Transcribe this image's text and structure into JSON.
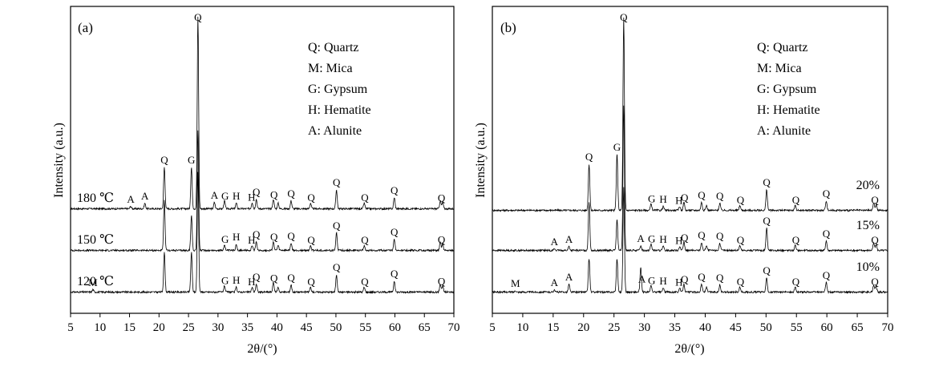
{
  "chart_data": [
    {
      "type": "line",
      "panel_label": "(a)",
      "xlabel": "2θ/(°)",
      "ylabel": "Intensity (a.u.)",
      "xlim": [
        5,
        70
      ],
      "xticks": [
        5,
        10,
        15,
        20,
        25,
        30,
        35,
        40,
        45,
        50,
        55,
        60,
        65,
        70
      ],
      "legend": [
        "Q:  Quartz",
        "M: Mica",
        "G: Gypsum",
        "H: Hematite",
        "A: Alunite"
      ],
      "legend_position": "top-right",
      "series": [
        {
          "name": "180 ℃",
          "baseline": 10,
          "peaks": [
            [
              15.2,
              3
            ],
            [
              17.6,
              7
            ],
            [
              20.9,
              52
            ],
            [
              25.5,
              52
            ],
            [
              26.6,
              240
            ],
            [
              29.4,
              8
            ],
            [
              31.1,
              10
            ],
            [
              33.1,
              7
            ],
            [
              35.8,
              8
            ],
            [
              36.5,
              12
            ],
            [
              39.4,
              12
            ],
            [
              40.2,
              7
            ],
            [
              42.4,
              10
            ],
            [
              45.7,
              7
            ],
            [
              50.1,
              24
            ],
            [
              54.8,
              7
            ],
            [
              59.9,
              14
            ],
            [
              67.7,
              10
            ],
            [
              68.1,
              8
            ]
          ],
          "peak_labels": [
            [
              "A",
              15.2
            ],
            [
              "A",
              17.6
            ],
            [
              "Q",
              20.9
            ],
            [
              "G",
              25.5
            ],
            [
              "Q",
              26.6
            ],
            [
              "A",
              29.4
            ],
            [
              "G",
              31.2
            ],
            [
              "H",
              33.1
            ],
            [
              "H",
              35.7
            ],
            [
              "Q",
              36.5
            ],
            [
              "Q",
              39.5
            ],
            [
              "Q",
              42.4
            ],
            [
              "Q",
              45.8
            ],
            [
              "Q",
              50.1
            ],
            [
              "Q",
              54.9
            ],
            [
              "Q",
              59.9
            ],
            [
              "Q",
              67.9
            ]
          ]
        },
        {
          "name": "150 ℃",
          "baseline": 10,
          "peaks": [
            [
              20.9,
              62
            ],
            [
              25.5,
              44
            ],
            [
              26.6,
              150
            ],
            [
              31.1,
              7
            ],
            [
              33.1,
              8
            ],
            [
              35.8,
              6
            ],
            [
              36.5,
              11
            ],
            [
              39.4,
              11
            ],
            [
              40.2,
              6
            ],
            [
              42.4,
              9
            ],
            [
              45.7,
              6
            ],
            [
              50.1,
              22
            ],
            [
              54.8,
              6
            ],
            [
              59.9,
              14
            ],
            [
              67.7,
              10
            ],
            [
              68.1,
              8
            ]
          ],
          "peak_labels": [
            [
              "G",
              31.2
            ],
            [
              "H",
              33.1
            ],
            [
              "H",
              35.7
            ],
            [
              "Q",
              36.5
            ],
            [
              "Q",
              39.5
            ],
            [
              "Q",
              42.4
            ],
            [
              "Q",
              45.8
            ],
            [
              "Q",
              50.1
            ],
            [
              "Q",
              54.9
            ],
            [
              "Q",
              59.9
            ],
            [
              "Q",
              67.9
            ]
          ]
        },
        {
          "name": "120 ℃",
          "baseline": 10,
          "peaks": [
            [
              8.8,
              3
            ],
            [
              20.9,
              50
            ],
            [
              25.5,
              50
            ],
            [
              26.6,
              150
            ],
            [
              31.1,
              8
            ],
            [
              33.1,
              6
            ],
            [
              35.8,
              6
            ],
            [
              36.5,
              10
            ],
            [
              39.4,
              12
            ],
            [
              40.2,
              6
            ],
            [
              42.4,
              9
            ],
            [
              45.7,
              6
            ],
            [
              50.1,
              22
            ],
            [
              54.8,
              6
            ],
            [
              59.9,
              14
            ],
            [
              67.7,
              10
            ],
            [
              68.1,
              8
            ]
          ],
          "peak_labels": [
            [
              "M",
              8.8
            ],
            [
              "G",
              31.2
            ],
            [
              "H",
              33.1
            ],
            [
              "H",
              35.7
            ],
            [
              "Q",
              36.5
            ],
            [
              "Q",
              39.5
            ],
            [
              "Q",
              42.4
            ],
            [
              "Q",
              45.8
            ],
            [
              "Q",
              50.1
            ],
            [
              "Q",
              54.9
            ],
            [
              "Q",
              59.9
            ],
            [
              "Q",
              67.9
            ]
          ]
        }
      ]
    },
    {
      "type": "line",
      "panel_label": "(b)",
      "xlabel": "2θ/(°)",
      "ylabel": "Intensity (a.u.)",
      "xlim": [
        5,
        70
      ],
      "xticks": [
        5,
        10,
        15,
        20,
        25,
        30,
        35,
        40,
        45,
        50,
        55,
        60,
        65,
        70
      ],
      "legend": [
        "Q:  Quartz",
        "M: Mica",
        "G: Gypsum",
        "H: Hematite",
        "A: Alunite"
      ],
      "legend_position": "top-right",
      "series": [
        {
          "name": "20%",
          "baseline": 10,
          "peaks": [
            [
              20.9,
              58
            ],
            [
              25.5,
              70
            ],
            [
              26.6,
              240
            ],
            [
              31.1,
              8
            ],
            [
              33.1,
              5
            ],
            [
              35.8,
              5
            ],
            [
              36.5,
              10
            ],
            [
              39.4,
              10
            ],
            [
              40.2,
              6
            ],
            [
              42.4,
              9
            ],
            [
              45.7,
              6
            ],
            [
              50.1,
              26
            ],
            [
              54.8,
              6
            ],
            [
              59.9,
              12
            ],
            [
              67.7,
              9
            ],
            [
              68.1,
              7
            ]
          ],
          "peak_labels": [
            [
              "Q",
              20.9
            ],
            [
              "G",
              25.5
            ],
            [
              "Q",
              26.6
            ],
            [
              "G",
              31.2
            ],
            [
              "H",
              33.1
            ],
            [
              "H",
              35.7
            ],
            [
              "Q",
              36.6
            ],
            [
              "Q",
              39.4
            ],
            [
              "Q",
              42.4
            ],
            [
              "Q",
              45.8
            ],
            [
              "Q",
              50.1
            ],
            [
              "Q",
              54.9
            ],
            [
              "Q",
              59.9
            ],
            [
              "Q",
              67.9
            ]
          ]
        },
        {
          "name": "15%",
          "baseline": 10,
          "peaks": [
            [
              15.2,
              2
            ],
            [
              17.6,
              5
            ],
            [
              20.9,
              60
            ],
            [
              25.5,
              38
            ],
            [
              26.6,
              180
            ],
            [
              29.4,
              6
            ],
            [
              31.1,
              8
            ],
            [
              33.1,
              5
            ],
            [
              35.8,
              5
            ],
            [
              36.5,
              10
            ],
            [
              39.4,
              10
            ],
            [
              40.2,
              6
            ],
            [
              42.4,
              9
            ],
            [
              45.7,
              6
            ],
            [
              50.1,
              28
            ],
            [
              54.8,
              6
            ],
            [
              59.9,
              12
            ],
            [
              67.7,
              9
            ],
            [
              68.1,
              7
            ]
          ],
          "peak_labels": [
            [
              "A",
              15.2
            ],
            [
              "A",
              17.6
            ],
            [
              "A",
              29.4
            ],
            [
              "G",
              31.2
            ],
            [
              "H",
              33.1
            ],
            [
              "H",
              35.7
            ],
            [
              "Q",
              36.6
            ],
            [
              "Q",
              39.4
            ],
            [
              "Q",
              42.4
            ],
            [
              "Q",
              45.8
            ],
            [
              "Q",
              50.1
            ],
            [
              "Q",
              54.9
            ],
            [
              "Q",
              59.9
            ],
            [
              "Q",
              67.9
            ]
          ]
        },
        {
          "name": "10%",
          "baseline": 10,
          "peaks": [
            [
              8.8,
              2
            ],
            [
              15.2,
              3
            ],
            [
              17.6,
              10
            ],
            [
              20.9,
              42
            ],
            [
              25.5,
              42
            ],
            [
              26.6,
              130
            ],
            [
              29.4,
              30
            ],
            [
              31.1,
              8
            ],
            [
              33.1,
              5
            ],
            [
              35.8,
              5
            ],
            [
              36.5,
              10
            ],
            [
              39.4,
              10
            ],
            [
              40.2,
              6
            ],
            [
              42.4,
              9
            ],
            [
              45.7,
              6
            ],
            [
              50.1,
              18
            ],
            [
              54.8,
              6
            ],
            [
              59.9,
              12
            ],
            [
              67.7,
              9
            ],
            [
              68.1,
              7
            ]
          ],
          "peak_labels": [
            [
              "M",
              8.8
            ],
            [
              "A",
              15.2
            ],
            [
              "A",
              17.6
            ],
            [
              "A",
              29.6
            ],
            [
              "G",
              31.2
            ],
            [
              "H",
              33.1
            ],
            [
              "H",
              35.7
            ],
            [
              "Q",
              36.6
            ],
            [
              "Q",
              39.4
            ],
            [
              "Q",
              42.4
            ],
            [
              "Q",
              45.8
            ],
            [
              "Q",
              50.1
            ],
            [
              "Q",
              54.9
            ],
            [
              "Q",
              59.9
            ],
            [
              "Q",
              67.9
            ]
          ]
        }
      ]
    }
  ]
}
